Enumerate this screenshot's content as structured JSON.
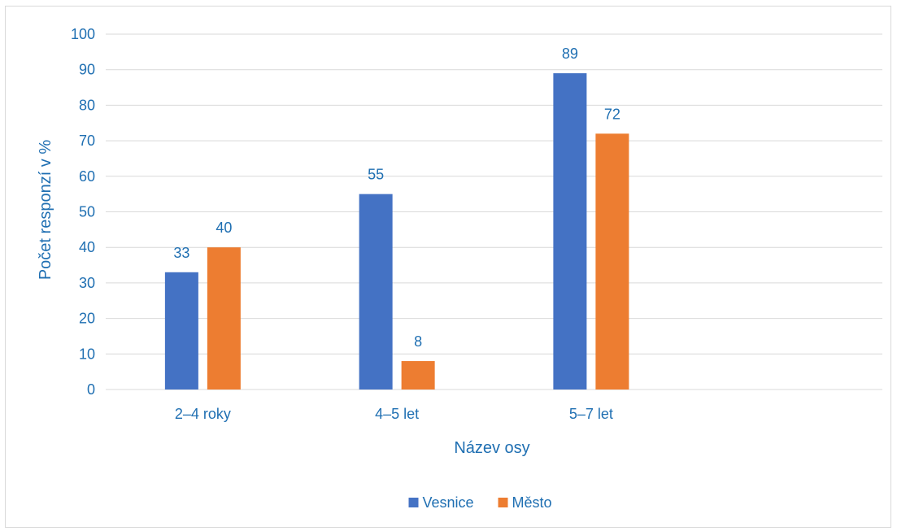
{
  "chart_data": {
    "type": "bar",
    "categories": [
      "2–4 roky",
      "4–5 let",
      "5–7 let",
      ""
    ],
    "series": [
      {
        "name": "Vesnice",
        "values": [
          33,
          55,
          89,
          null
        ],
        "color": "#4472c4"
      },
      {
        "name": "Město",
        "values": [
          40,
          8,
          72,
          null
        ],
        "color": "#ed7d31"
      }
    ],
    "title": "",
    "xlabel": "Název osy",
    "ylabel": "Počet responzí v %",
    "ylim": [
      0,
      100
    ],
    "yticks": [
      0,
      10,
      20,
      30,
      40,
      50,
      60,
      70,
      80,
      90,
      100
    ],
    "grid": true,
    "legend": "bottom",
    "colors": {
      "text": "#1f6fb2",
      "grid": "#d9d9d9",
      "axis": "#d9d9d9"
    }
  }
}
